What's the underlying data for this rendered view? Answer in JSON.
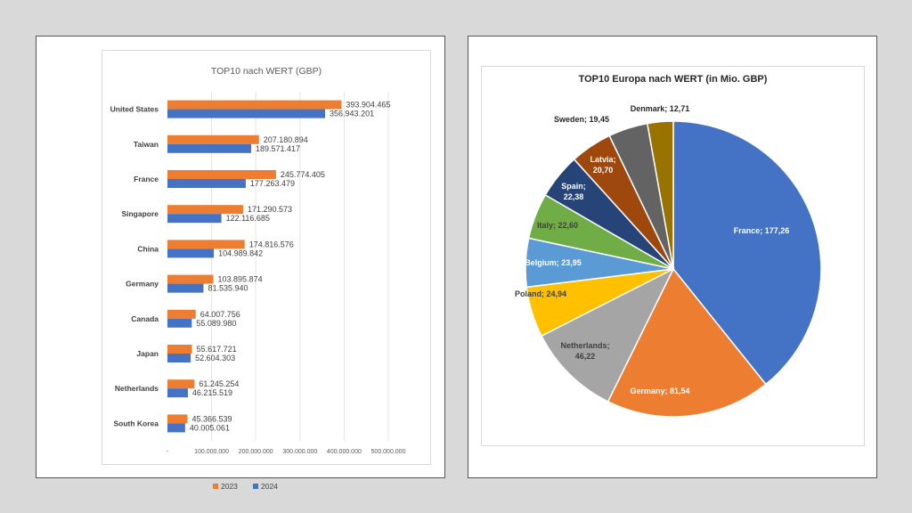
{
  "charts": [
    {
      "title": "TOP10 nach WERT (GBP)",
      "chart_data": {
        "type": "bar",
        "orientation": "horizontal",
        "title": "TOP10 nach WERT (GBP)",
        "categories": [
          "United States",
          "Taiwan",
          "France",
          "Singapore",
          "China",
          "Germany",
          "Canada",
          "Japan",
          "Netherlands",
          "South Korea"
        ],
        "series": [
          {
            "name": "2023",
            "color": "#ed7d31",
            "values": [
              393904465,
              207180894,
              245774405,
              171290573,
              174816576,
              103895874,
              64007756,
              55617721,
              61245254,
              45366539
            ],
            "labels": [
              "393.904.465",
              "207.180.894",
              "245.774.405",
              "171.290.573",
              "174.816.576",
              "103.895.874",
              "64.007.756",
              "55.617.721",
              "61.245.254",
              "45.366.539"
            ]
          },
          {
            "name": "2024",
            "color": "#4472c4",
            "values": [
              356943201,
              189571417,
              177263479,
              122116685,
              104989842,
              81535940,
              55089980,
              52604303,
              46215519,
              40005061
            ],
            "labels": [
              "356.943.201",
              "189.571.417",
              "177.263.479",
              "122.116.685",
              "104.989.842",
              "81.535.940",
              "55.089.980",
              "52.604.303",
              "46.215.519",
              "40.005.061"
            ]
          }
        ],
        "xlim": [
          0,
          500000000
        ],
        "x_ticks": [
          0,
          100000000,
          200000000,
          300000000,
          400000000,
          500000000
        ],
        "x_tick_labels": [
          "-",
          "100.000.000",
          "200.000.000",
          "300.000.000",
          "400.000.000",
          "500.000.000"
        ],
        "grid": true,
        "legend": "bottom"
      }
    },
    {
      "title": "TOP10 Europa nach WERT (in Mio. GBP)",
      "chart_data": {
        "type": "pie",
        "title": "TOP10 Europa nach WERT (in Mio. GBP)",
        "slices": [
          {
            "label": "France; 177,26",
            "value": 177.26,
            "color": "#4472c4",
            "text_color": "#ffffff"
          },
          {
            "label": "Germany; 81,54",
            "value": 81.54,
            "color": "#ed7d31",
            "text_color": "#ffffff"
          },
          {
            "label": "Netherlands; 46,22",
            "value": 46.22,
            "color": "#a5a5a5",
            "text_color": "#404040"
          },
          {
            "label": "Poland; 24,94",
            "value": 24.94,
            "color": "#ffc000",
            "text_color": "#404040"
          },
          {
            "label": "Belgium; 23,95",
            "value": 23.95,
            "color": "#5b9bd5",
            "text_color": "#ffffff"
          },
          {
            "label": "Italy; 22,60",
            "value": 22.6,
            "color": "#70ad47",
            "text_color": "#404040"
          },
          {
            "label": "Spain; 22,38",
            "value": 22.38,
            "color": "#264478",
            "text_color": "#ffffff"
          },
          {
            "label": "Latvia; 20,70",
            "value": 20.7,
            "color": "#9e480e",
            "text_color": "#ffffff"
          },
          {
            "label": "Sweden; 19,45",
            "value": 19.45,
            "color": "#636363",
            "text_color": "#262626"
          },
          {
            "label": "Denmark; 12,71",
            "value": 12.71,
            "color": "#997300",
            "text_color": "#262626"
          }
        ]
      }
    }
  ]
}
